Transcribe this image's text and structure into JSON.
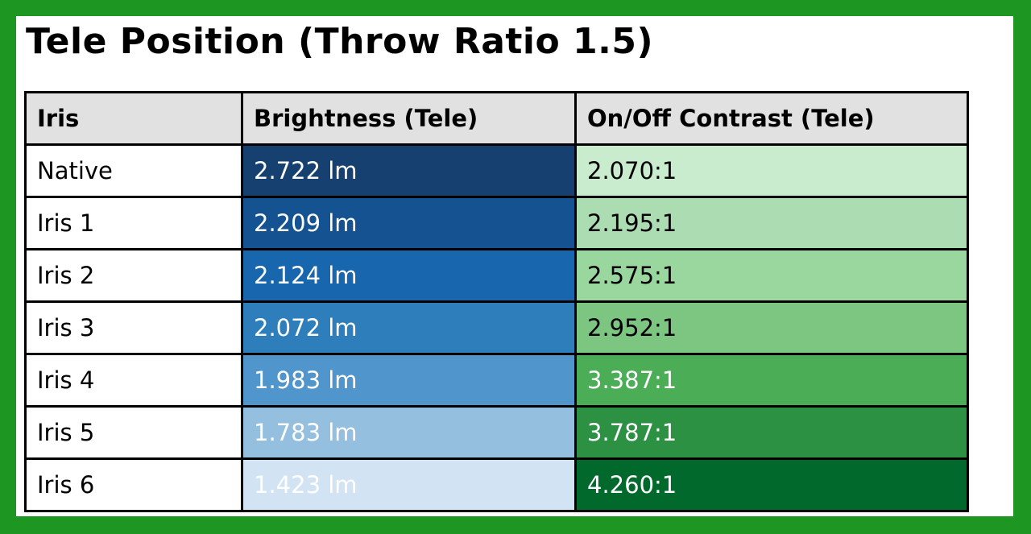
{
  "page": {
    "title": "Tele Position (Throw Ratio 1.5)",
    "frame_color": "#1d9722",
    "background_color": "#ffffff",
    "table_border_color": "#000000",
    "header_bg_color": "#e1e1e1"
  },
  "table": {
    "columns": {
      "iris": "Iris",
      "brightness": "Brightness (Tele)",
      "contrast": "On/Off Contrast (Tele)"
    },
    "rows": [
      {
        "iris": "Native",
        "brightness": "2.722 lm",
        "contrast": "2.070:1",
        "brightness_bg": "#16406f",
        "brightness_fg": "#ffffff",
        "contrast_bg": "#c9ecce",
        "contrast_fg": "#000000"
      },
      {
        "iris": "Iris 1",
        "brightness": "2.209 lm",
        "contrast": "2.195:1",
        "brightness_bg": "#145291",
        "brightness_fg": "#ffffff",
        "contrast_bg": "#acdcb1",
        "contrast_fg": "#000000"
      },
      {
        "iris": "Iris 2",
        "brightness": "2.124 lm",
        "contrast": "2.575:1",
        "brightness_bg": "#1866ad",
        "brightness_fg": "#ffffff",
        "contrast_bg": "#9ad79e",
        "contrast_fg": "#000000"
      },
      {
        "iris": "Iris 3",
        "brightness": "2.072 lm",
        "contrast": "2.952:1",
        "brightness_bg": "#2e7ebc",
        "brightness_fg": "#ffffff",
        "contrast_bg": "#7cc682",
        "contrast_fg": "#000000"
      },
      {
        "iris": "Iris 4",
        "brightness": "1.983 lm",
        "contrast": "3.387:1",
        "brightness_bg": "#5095cb",
        "brightness_fg": "#ffffff",
        "contrast_bg": "#4bad56",
        "contrast_fg": "#ffffff"
      },
      {
        "iris": "Iris 5",
        "brightness": "1.783 lm",
        "contrast": "3.787:1",
        "brightness_bg": "#94bfde",
        "brightness_fg": "#ffffff",
        "contrast_bg": "#2d9144",
        "contrast_fg": "#ffffff"
      },
      {
        "iris": "Iris 6",
        "brightness": "1.423 lm",
        "contrast": "4.260:1",
        "brightness_bg": "#d2e3f3",
        "brightness_fg": "#ffffff",
        "contrast_bg": "#02692c",
        "contrast_fg": "#ffffff"
      }
    ]
  },
  "chart_data": {
    "type": "table",
    "title": "Tele Position (Throw Ratio 1.5)",
    "columns": [
      "Iris",
      "Brightness (Tele)",
      "On/Off Contrast (Tele)"
    ],
    "rows": [
      [
        "Native",
        "2.722 lm",
        "2.070:1"
      ],
      [
        "Iris 1",
        "2.209 lm",
        "2.195:1"
      ],
      [
        "Iris 2",
        "2.124 lm",
        "2.575:1"
      ],
      [
        "Iris 3",
        "2.072 lm",
        "2.952:1"
      ],
      [
        "Iris 4",
        "1.983 lm",
        "3.387:1"
      ],
      [
        "Iris 5",
        "1.783 lm",
        "3.787:1"
      ],
      [
        "Iris 6",
        "1.423 lm",
        "4.260:1"
      ]
    ],
    "brightness_lm": [
      2.722,
      2.209,
      2.124,
      2.072,
      1.983,
      1.783,
      1.423
    ],
    "contrast_ratio": [
      2.07,
      2.195,
      2.575,
      2.952,
      3.387,
      3.787,
      4.26
    ],
    "layout_hints": {
      "brightness_column_shading": "blue gradient, darkest at top (highest lumens) to lightest at bottom",
      "contrast_column_shading": "green gradient, lightest at top (lowest contrast) to darkest at bottom"
    }
  }
}
